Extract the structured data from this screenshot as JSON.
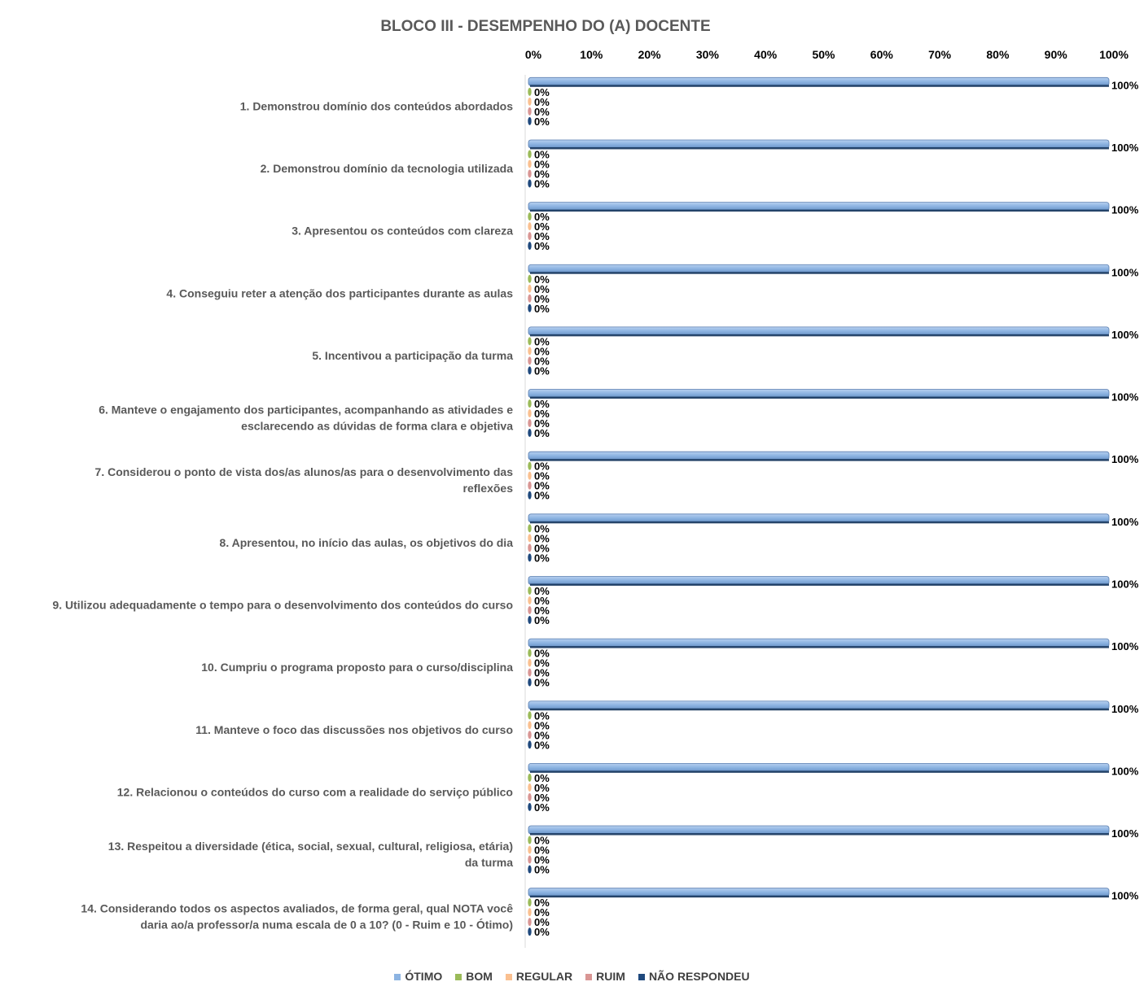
{
  "chart_data": {
    "type": "bar",
    "orientation": "horizontal",
    "title": "BLOCO III - DESEMPENHO DO (A) DOCENTE",
    "xlim": [
      0,
      100
    ],
    "x_ticks": [
      "0%",
      "10%",
      "20%",
      "30%",
      "40%",
      "50%",
      "60%",
      "70%",
      "80%",
      "90%",
      "100%"
    ],
    "legend_position": "bottom",
    "categories": [
      "1. Demonstrou domínio dos conteúdos abordados",
      "2. Demonstrou domínio da tecnologia utilizada",
      "3. Apresentou os conteúdos com clareza",
      "4. Conseguiu reter a atenção dos participantes durante as aulas",
      "5. Incentivou a participação da turma",
      "6. Manteve o engajamento dos participantes, acompanhando as atividades e esclarecendo as dúvidas de forma clara e objetiva",
      "7. Considerou o ponto de vista dos/as alunos/as para o desenvolvimento das reflexões",
      "8. Apresentou, no início das aulas, os objetivos do dia",
      "9. Utilizou adequadamente o tempo para o desenvolvimento dos conteúdos do curso",
      "10. Cumpriu o programa proposto para o curso/disciplina",
      "11. Manteve o foco das discussões nos objetivos do curso",
      "12. Relacionou o conteúdos do curso com a realidade do serviço público",
      "13. Respeitou a diversidade (ética, social, sexual, cultural, religiosa, etária) da turma",
      "14. Considerando todos os aspectos avaliados, de forma geral, qual NOTA você daria ao/a professor/a numa escala de 0 a 10? (0 - Ruim e 10 - Ótimo)"
    ],
    "series": [
      {
        "name": "ÓTIMO",
        "color": "#8db4e2",
        "values": [
          100,
          100,
          100,
          100,
          100,
          100,
          100,
          100,
          100,
          100,
          100,
          100,
          100,
          100
        ],
        "labels": [
          "100%",
          "100%",
          "100%",
          "100%",
          "100%",
          "100%",
          "100%",
          "100%",
          "100%",
          "100%",
          "100%",
          "100%",
          "100%",
          "100%"
        ]
      },
      {
        "name": "BOM",
        "color": "#9bbb59",
        "values": [
          0,
          0,
          0,
          0,
          0,
          0,
          0,
          0,
          0,
          0,
          0,
          0,
          0,
          0
        ],
        "labels": [
          "0%",
          "0%",
          "0%",
          "0%",
          "0%",
          "0%",
          "0%",
          "0%",
          "0%",
          "0%",
          "0%",
          "0%",
          "0%",
          "0%"
        ]
      },
      {
        "name": "REGULAR",
        "color": "#fac090",
        "values": [
          0,
          0,
          0,
          0,
          0,
          0,
          0,
          0,
          0,
          0,
          0,
          0,
          0,
          0
        ],
        "labels": [
          "0%",
          "0%",
          "0%",
          "0%",
          "0%",
          "0%",
          "0%",
          "0%",
          "0%",
          "0%",
          "0%",
          "0%",
          "0%",
          "0%"
        ]
      },
      {
        "name": "RUIM",
        "color": "#d99694",
        "values": [
          0,
          0,
          0,
          0,
          0,
          0,
          0,
          0,
          0,
          0,
          0,
          0,
          0,
          0
        ],
        "labels": [
          "0%",
          "0%",
          "0%",
          "0%",
          "0%",
          "0%",
          "0%",
          "0%",
          "0%",
          "0%",
          "0%",
          "0%",
          "0%",
          "0%"
        ]
      },
      {
        "name": "NÃO RESPONDEU",
        "color": "#1f497d",
        "values": [
          0,
          0,
          0,
          0,
          0,
          0,
          0,
          0,
          0,
          0,
          0,
          0,
          0,
          0
        ],
        "labels": [
          "0%",
          "0%",
          "0%",
          "0%",
          "0%",
          "0%",
          "0%",
          "0%",
          "0%",
          "0%",
          "0%",
          "0%",
          "0%",
          "0%"
        ]
      }
    ]
  }
}
